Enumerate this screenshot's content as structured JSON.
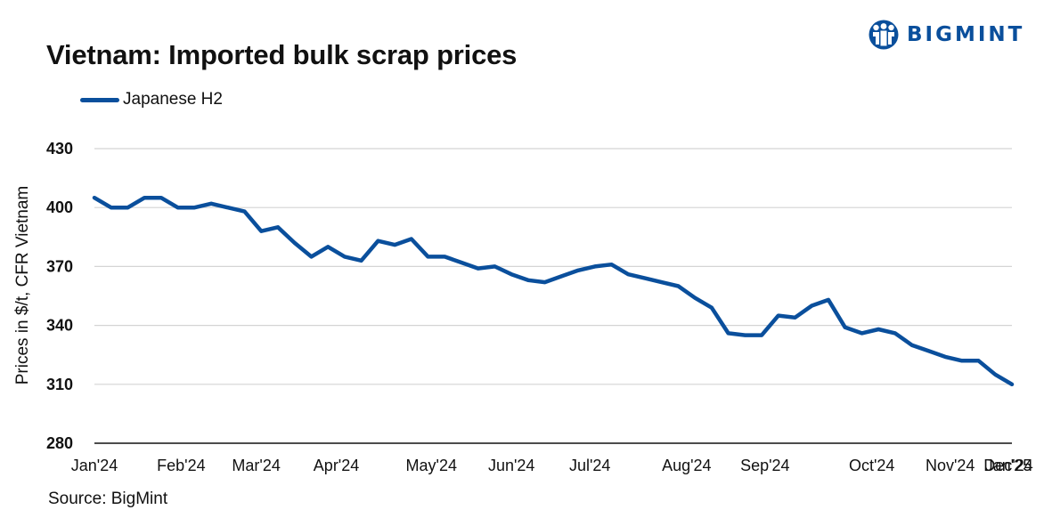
{
  "brand": {
    "name": "BIGMINT",
    "color": "#0a4f9c",
    "logo_icon": "people-group-icon"
  },
  "chart_data": {
    "type": "line",
    "title": "Vietnam: Imported bulk scrap prices",
    "ylabel": "Prices in $/t, CFR Vietnam",
    "xlabel": "",
    "ylim": [
      280,
      430
    ],
    "yticks": [
      280,
      310,
      340,
      370,
      400,
      430
    ],
    "grid": true,
    "legend_position": "top-left",
    "x_tick_labels": [
      {
        "label": "Jan'24",
        "index": 0
      },
      {
        "label": "Feb'24",
        "index": 5.2
      },
      {
        "label": "Mar'24",
        "index": 9.7
      },
      {
        "label": "Apr'24",
        "index": 14.5
      },
      {
        "label": "May'24",
        "index": 20.2
      },
      {
        "label": "Jun'24",
        "index": 25
      },
      {
        "label": "Jul'24",
        "index": 29.7
      },
      {
        "label": "Aug'24",
        "index": 35.5
      },
      {
        "label": "Sep'24",
        "index": 40.2
      },
      {
        "label": "Oct'24",
        "index": 46.6
      },
      {
        "label": "Nov'24",
        "index": 51.3
      },
      {
        "label": "Dec'24",
        "index": 56.1
      },
      {
        "label": "Jan'25",
        "index": 61.8
      }
    ],
    "series": [
      {
        "name": "Japanese H2",
        "color": "#0a4f9c",
        "values": [
          405,
          400,
          400,
          405,
          405,
          400,
          400,
          402,
          400,
          398,
          388,
          390,
          382,
          375,
          380,
          375,
          373,
          383,
          381,
          384,
          375,
          375,
          372,
          369,
          370,
          366,
          363,
          362,
          365,
          368,
          370,
          371,
          366,
          364,
          362,
          360,
          354,
          349,
          336,
          335,
          335,
          345,
          344,
          350,
          353,
          339,
          336,
          338,
          336,
          330,
          327,
          324,
          322,
          322,
          315,
          310
        ]
      }
    ]
  },
  "source": "Source: BigMint"
}
